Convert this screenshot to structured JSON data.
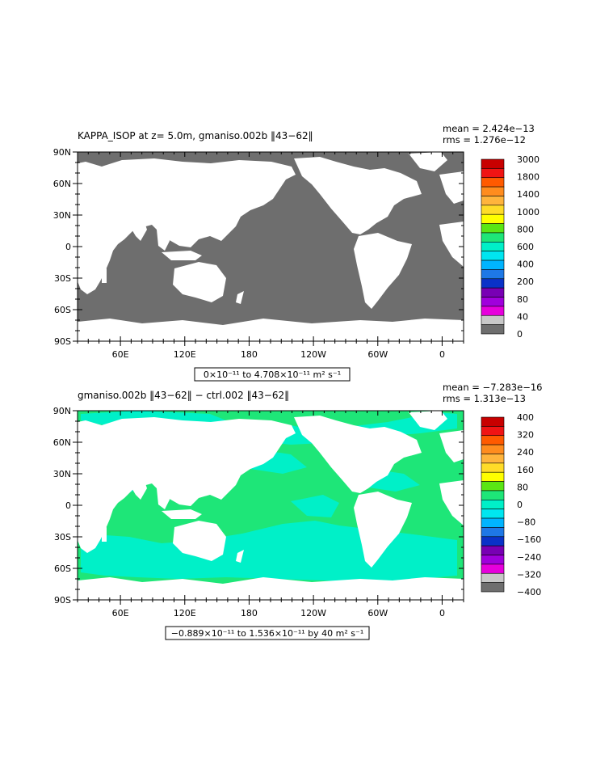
{
  "panels": [
    {
      "id": "top",
      "title": "KAPPA_ISOP at z=    5.0m, gmaniso.002b ‖43−62‖",
      "stats": [
        "mean = 2.424e−13",
        "rms = 1.276e−12"
      ],
      "range_label": "0×10⁻¹¹ to 4.708×10⁻¹¹ m² s⁻¹",
      "ocean_color": "#6e6e6e",
      "colorbar": {
        "labels": [
          "3000",
          "1800",
          "1400",
          "1000",
          "800",
          "600",
          "400",
          "200",
          "80",
          "40",
          "0"
        ],
        "colors": [
          "#c80000",
          "#f01414",
          "#ff5a00",
          "#ff8c1e",
          "#ffb43c",
          "#ffdc28",
          "#ffff00",
          "#5ae614",
          "#1ee678",
          "#00f0c8",
          "#00e6f0",
          "#00b4ff",
          "#1e78e6",
          "#0a32c8",
          "#7800b4",
          "#a000dc",
          "#e600dc",
          "#c8c8c8",
          "#6e6e6e"
        ]
      }
    },
    {
      "id": "bottom",
      "title": "gmaniso.002b ‖43−62‖ − ctrl.002 ‖43−62‖",
      "stats": [
        "mean = −7.283e−16",
        "rms = 1.313e−13"
      ],
      "range_label": "−0.889×10⁻¹¹ to 1.536×10⁻¹¹ by 40 m² s⁻¹",
      "ocean_color": "#1ee678",
      "colorbar": {
        "labels": [
          "400",
          "320",
          "240",
          "160",
          "80",
          "0",
          "−80",
          "−160",
          "−240",
          "−320",
          "−400"
        ],
        "colors": [
          "#c80000",
          "#f01414",
          "#ff5a00",
          "#ff8c1e",
          "#ffb43c",
          "#ffdc28",
          "#ffff00",
          "#5ae614",
          "#1ee678",
          "#00f0c8",
          "#00e6f0",
          "#00b4ff",
          "#1e78e6",
          "#0a32c8",
          "#7800b4",
          "#a000dc",
          "#e600dc",
          "#c8c8c8",
          "#6e6e6e"
        ]
      }
    }
  ],
  "axes": {
    "lat_labels": [
      "90N",
      "60N",
      "30N",
      "0",
      "30S",
      "60S",
      "90S"
    ],
    "lon_labels": [
      "60E",
      "120E",
      "180",
      "120W",
      "60W",
      "0"
    ]
  }
}
